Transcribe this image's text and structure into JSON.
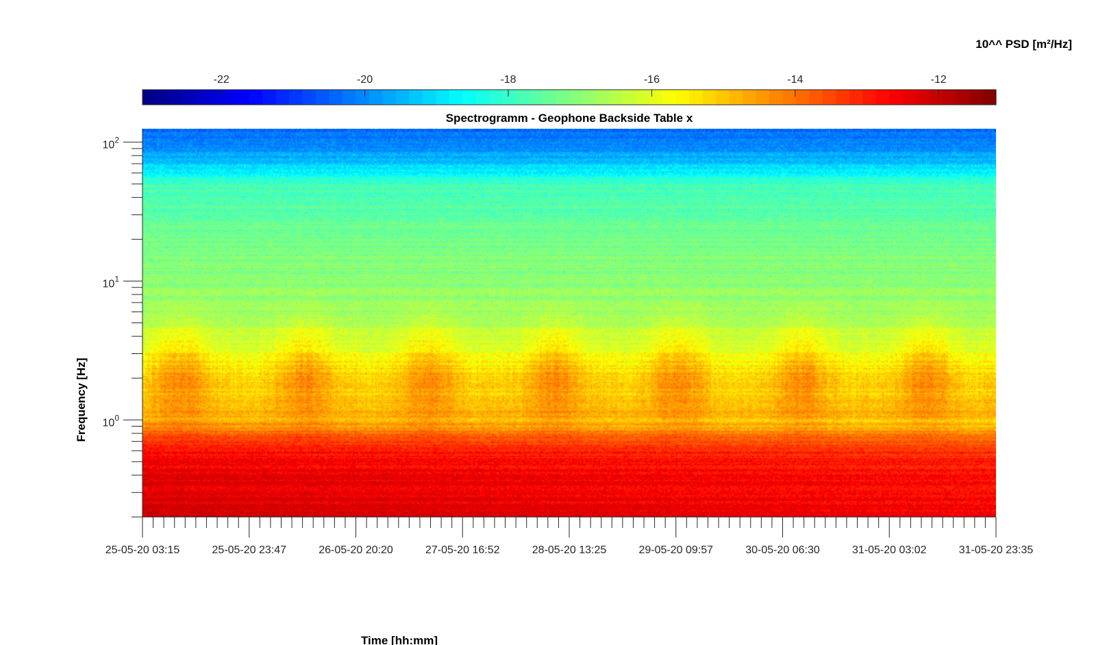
{
  "chart_data": {
    "type": "heatmap",
    "title": "Spectrogramm - Geophone Backside Table x",
    "xlabel": "Time [hh:mm]",
    "ylabel": "Frequency [Hz]",
    "x": {
      "scale": "time",
      "range": [
        "25-05-20 03:15",
        "31-05-20 23:35"
      ],
      "tick_labels": [
        "25-05-20 03:15",
        "25-05-20 23:47",
        "26-05-20 20:20",
        "27-05-20 16:52",
        "28-05-20 13:25",
        "29-05-20 09:57",
        "30-05-20 06:30",
        "31-05-20 03:02",
        "31-05-20 23:35"
      ]
    },
    "y": {
      "scale": "log",
      "range": [
        0.2,
        125
      ],
      "major_ticks": [
        1,
        10,
        100
      ],
      "major_tick_labels": [
        {
          "base": "10",
          "exp": "0"
        },
        {
          "base": "10",
          "exp": "1"
        },
        {
          "base": "10",
          "exp": "2"
        }
      ]
    },
    "colorbar": {
      "label": "10^^ PSD [m²/Hz]",
      "range": [
        -23.1,
        -11.2
      ],
      "ticks": [
        -22,
        -20,
        -18,
        -16,
        -14,
        -12
      ],
      "tick_labels": [
        "-22",
        "-20",
        "-18",
        "-16",
        "-14",
        "-12"
      ],
      "colormap": "jet",
      "placement": "top"
    },
    "psd_log10_profile": {
      "frequency_hz": [
        0.2,
        0.4,
        0.6,
        0.8,
        1.0,
        2.0,
        4.0,
        6.0,
        10.0,
        20.0,
        30.0,
        50.0,
        70.0,
        100.0,
        125.0
      ],
      "value": [
        -12.1,
        -12.4,
        -12.8,
        -13.9,
        -14.8,
        -15.2,
        -16.3,
        -16.8,
        -17.0,
        -17.3,
        -17.5,
        -17.9,
        -19.3,
        -20.2,
        -20.4
      ]
    },
    "legend": "none",
    "grid": false
  }
}
